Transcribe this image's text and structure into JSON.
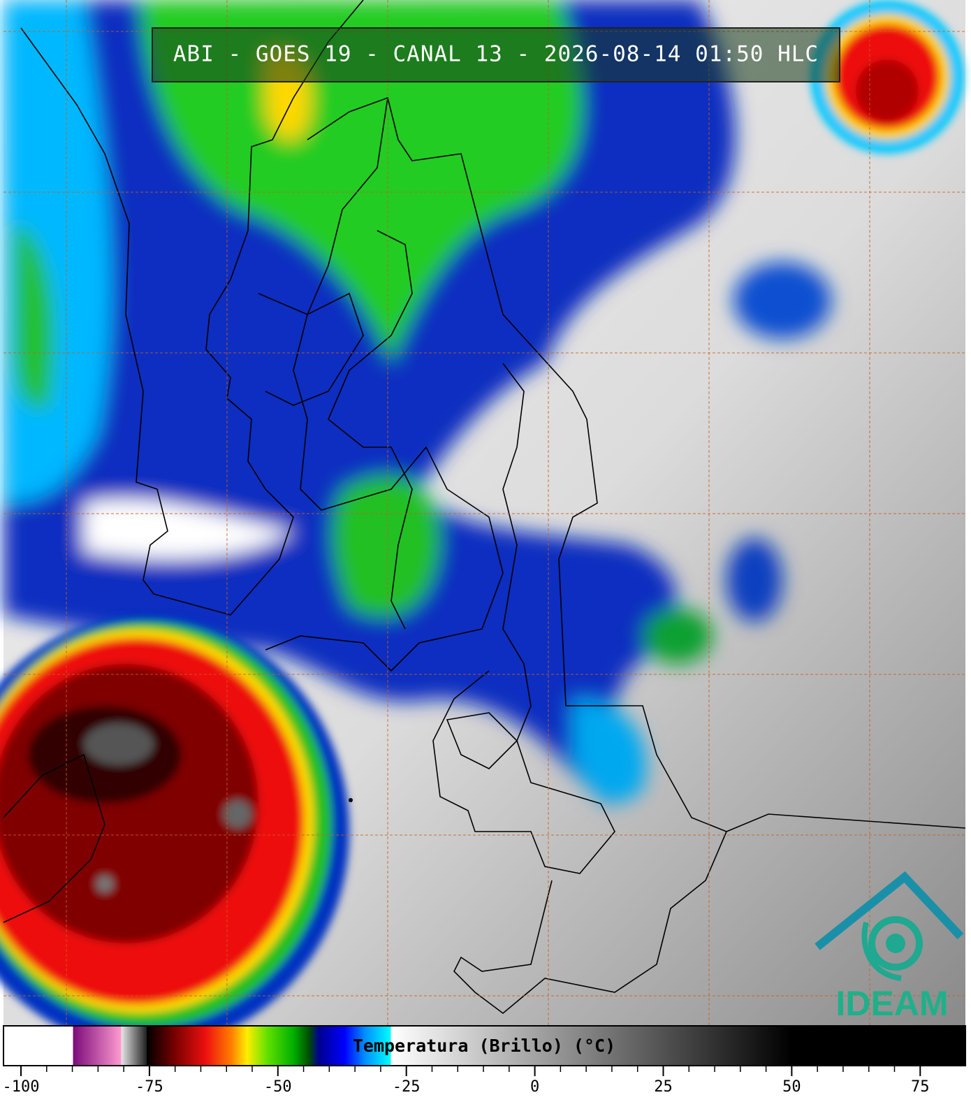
{
  "header": {
    "title": "ABI - GOES 19 - CANAL 13 - 2026-08-14 01:50 HLC"
  },
  "colorbar": {
    "label": "Temperatura (Brillo) (°C)",
    "lim": [
      -103.4,
      83.8
    ],
    "ticks": [
      -100,
      -75,
      -50,
      -25,
      0,
      25,
      50,
      75
    ],
    "minor_step": 5,
    "stops": [
      [
        -103.4,
        "#ffffff"
      ],
      [
        -89.9,
        "#ffffff"
      ],
      [
        -89.9,
        "#7a0a7a"
      ],
      [
        -80.5,
        "#ff9ad0"
      ],
      [
        -80.5,
        "#e6e6e6"
      ],
      [
        -75.5,
        "#202020"
      ],
      [
        -75.5,
        "#000000"
      ],
      [
        -70,
        "#7a0000"
      ],
      [
        -64,
        "#ee1010"
      ],
      [
        -59,
        "#ff8000"
      ],
      [
        -56,
        "#ffee00"
      ],
      [
        -52,
        "#60e000"
      ],
      [
        -47,
        "#00b000"
      ],
      [
        -44,
        "#005000"
      ],
      [
        -42,
        "#000090"
      ],
      [
        -37,
        "#0000ff"
      ],
      [
        -33,
        "#0090ff"
      ],
      [
        -28,
        "#00ffff"
      ],
      [
        -28,
        "#ffffff"
      ],
      [
        50,
        "#000000"
      ],
      [
        83.8,
        "#000000"
      ]
    ]
  },
  "logo": {
    "text": "IDEAM"
  }
}
